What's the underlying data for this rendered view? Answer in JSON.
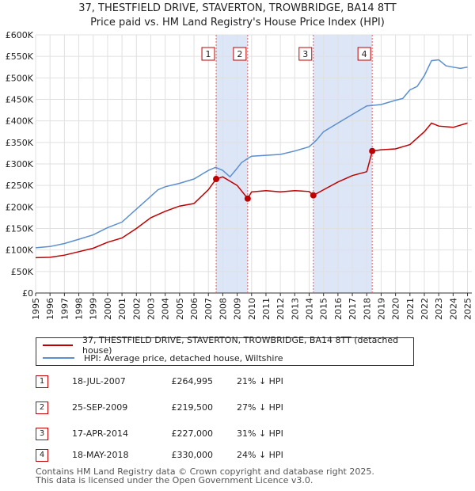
{
  "title": {
    "line1": "37, THESTFIELD DRIVE, STAVERTON, TROWBRIDGE, BA14 8TT",
    "line2": "Price paid vs. HM Land Registry's House Price Index (HPI)"
  },
  "legend": {
    "property": "37, THESTFIELD DRIVE, STAVERTON, TROWBRIDGE, BA14 8TT (detached house)",
    "hpi": "HPI: Average price, detached house, Wiltshire"
  },
  "colors": {
    "property": "#c00000",
    "hpi": "#5b8fd0",
    "shade": "#dde6f7",
    "grid": "#e0e0e0",
    "vline": "#e06060"
  },
  "sales": [
    {
      "num": "1",
      "date": "18-JUL-2007",
      "price": "£264,995",
      "hpi": "21% ↓ HPI"
    },
    {
      "num": "2",
      "date": "25-SEP-2009",
      "price": "£219,500",
      "hpi": "27% ↓ HPI"
    },
    {
      "num": "3",
      "date": "17-APR-2014",
      "price": "£227,000",
      "hpi": "31% ↓ HPI"
    },
    {
      "num": "4",
      "date": "18-MAY-2018",
      "price": "£330,000",
      "hpi": "24% ↓ HPI"
    }
  ],
  "footer": {
    "line1": "Contains HM Land Registry data © Crown copyright and database right 2025.",
    "line2": "This data is licensed under the Open Government Licence v3.0."
  },
  "chart_data": {
    "type": "line",
    "title": "37, THESTFIELD DRIVE, STAVERTON, TROWBRIDGE, BA14 8TT — Price paid vs. HM Land Registry's House Price Index (HPI)",
    "xlabel": "",
    "ylabel": "",
    "xlim": [
      1995,
      2025.3
    ],
    "ylim": [
      0,
      600000
    ],
    "x_ticks": [
      "1995",
      "1996",
      "1997",
      "1998",
      "1999",
      "2000",
      "2001",
      "2002",
      "2003",
      "2004",
      "2005",
      "2006",
      "2007",
      "2008",
      "2009",
      "2010",
      "2011",
      "2012",
      "2013",
      "2014",
      "2015",
      "2016",
      "2017",
      "2018",
      "2019",
      "2020",
      "2021",
      "2022",
      "2023",
      "2024",
      "2025"
    ],
    "y_ticks": [
      {
        "value": 0,
        "label": "£0"
      },
      {
        "value": 50000,
        "label": "£50K"
      },
      {
        "value": 100000,
        "label": "£100K"
      },
      {
        "value": 150000,
        "label": "£150K"
      },
      {
        "value": 200000,
        "label": "£200K"
      },
      {
        "value": 250000,
        "label": "£250K"
      },
      {
        "value": 300000,
        "label": "£300K"
      },
      {
        "value": 350000,
        "label": "£350K"
      },
      {
        "value": 400000,
        "label": "£400K"
      },
      {
        "value": 450000,
        "label": "£450K"
      },
      {
        "value": 500000,
        "label": "£500K"
      },
      {
        "value": 550000,
        "label": "£550K"
      },
      {
        "value": 600000,
        "label": "£600K"
      }
    ],
    "shaded_periods": [
      [
        2007.54,
        2009.73
      ],
      [
        2014.29,
        2018.38
      ]
    ],
    "series": [
      {
        "name": "HPI: Average price, detached house, Wiltshire",
        "x": [
          1995,
          1996,
          1997,
          1998,
          1999,
          2000,
          2001,
          2002,
          2003,
          2003.5,
          2004,
          2005,
          2006,
          2007,
          2007.5,
          2008,
          2008.5,
          2009,
          2009.3,
          2009.7,
          2010,
          2011,
          2012,
          2013,
          2014,
          2014.5,
          2015,
          2016,
          2017,
          2018,
          2019,
          2020,
          2020.5,
          2021,
          2021.5,
          2022,
          2022.5,
          2023,
          2023.5,
          2024,
          2024.5,
          2025
        ],
        "values": [
          105000,
          108000,
          115000,
          125000,
          135000,
          152000,
          165000,
          195000,
          225000,
          240000,
          247000,
          255000,
          265000,
          285000,
          292000,
          285000,
          270000,
          290000,
          303000,
          312000,
          318000,
          320000,
          322000,
          330000,
          340000,
          355000,
          375000,
          395000,
          415000,
          435000,
          438000,
          448000,
          452000,
          472000,
          480000,
          505000,
          540000,
          542000,
          528000,
          525000,
          522000,
          525000
        ]
      },
      {
        "name": "37, THESTFIELD DRIVE, STAVERTON, TROWBRIDGE, BA14 8TT (detached house)",
        "x": [
          1995,
          1996,
          1997,
          1998,
          1999,
          2000,
          2001,
          2002,
          2003,
          2004,
          2005,
          2006,
          2007,
          2007.54,
          2008,
          2009,
          2009.73,
          2010,
          2011,
          2012,
          2013,
          2014,
          2014.29,
          2015,
          2016,
          2017,
          2018,
          2018.38,
          2019,
          2020,
          2021,
          2022,
          2022.5,
          2023,
          2024,
          2025
        ],
        "values": [
          82000,
          83000,
          88000,
          96000,
          104000,
          118000,
          128000,
          150000,
          175000,
          190000,
          202000,
          208000,
          240000,
          264995,
          270000,
          250000,
          219500,
          235000,
          238000,
          235000,
          238000,
          236000,
          227000,
          240000,
          258000,
          273000,
          282000,
          330000,
          333000,
          335000,
          345000,
          375000,
          395000,
          388000,
          385000,
          395000
        ]
      }
    ],
    "sale_points": [
      {
        "label": "1",
        "x": 2007.54,
        "y": 264995
      },
      {
        "label": "2",
        "x": 2009.73,
        "y": 219500
      },
      {
        "label": "3",
        "x": 2014.29,
        "y": 227000
      },
      {
        "label": "4",
        "x": 2018.38,
        "y": 330000
      }
    ]
  }
}
